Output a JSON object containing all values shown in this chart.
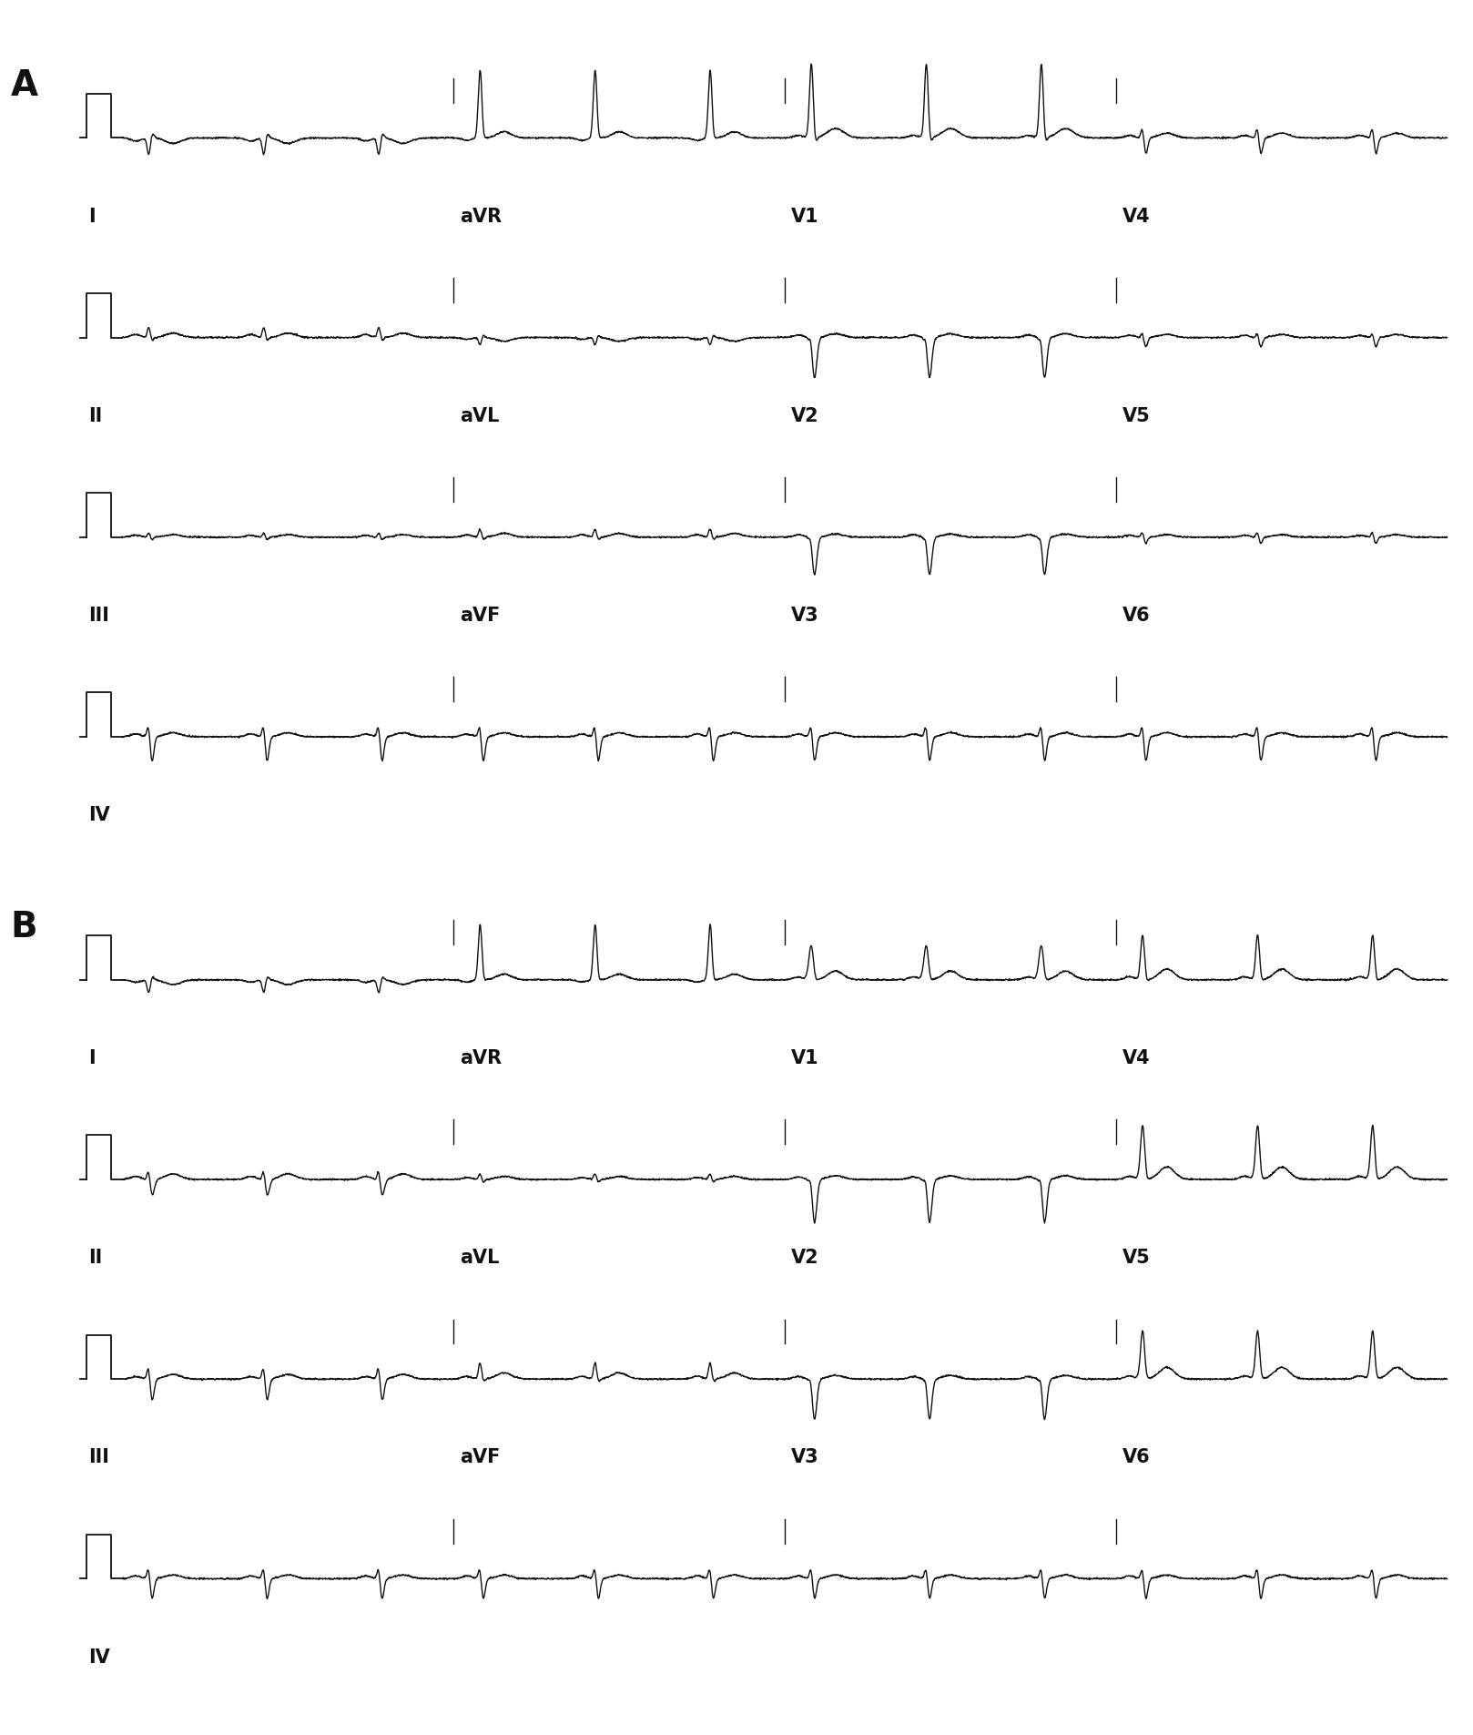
{
  "background_color": "#ffffff",
  "line_color": "#111111",
  "panel_A_label": "A",
  "panel_B_label": "B",
  "label_fontsize": 15,
  "panel_label_fontsize": 28,
  "line_width": 1.0,
  "row_labels": [
    [
      "I",
      "aVR",
      "V1",
      "V4"
    ],
    [
      "II",
      "aVL",
      "V2",
      "V5"
    ],
    [
      "III",
      "aVF",
      "V3",
      "V6"
    ],
    [
      "IV",
      "",
      "",
      ""
    ]
  ],
  "n_rows": 4,
  "n_sections": 4
}
